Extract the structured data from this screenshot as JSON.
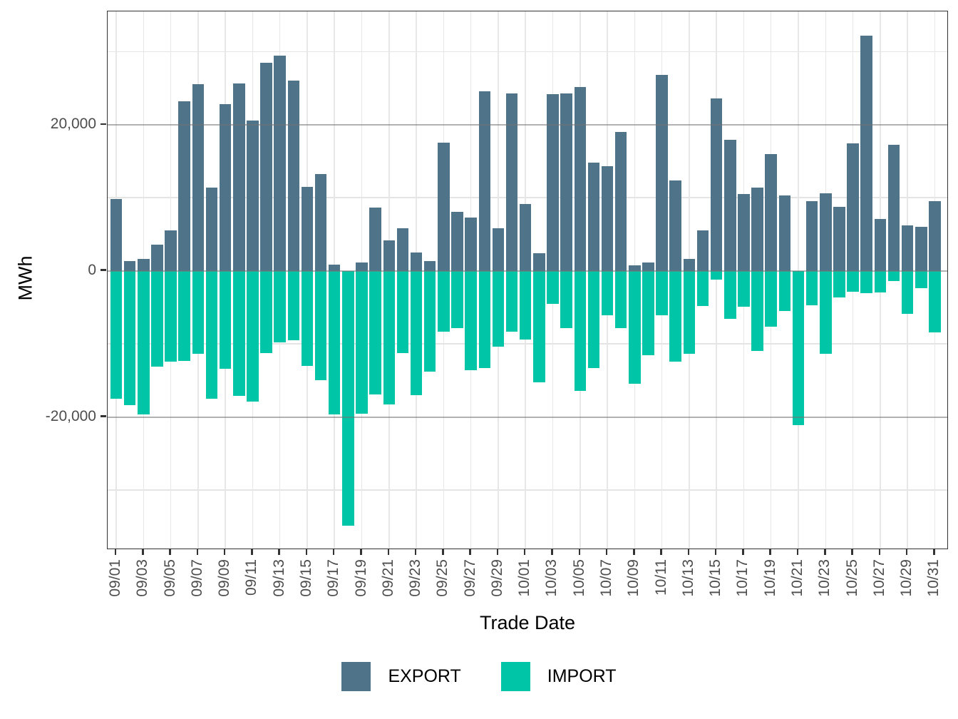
{
  "figure": {
    "y_axis_label": "MWh",
    "x_axis_label": "Trade Date",
    "y_ticks": [
      {
        "value": 20000,
        "label": "20,000"
      },
      {
        "value": 0,
        "label": "0"
      },
      {
        "value": -20000,
        "label": "-20,000"
      }
    ],
    "legend": [
      {
        "name": "EXPORT",
        "color": "#4f7389"
      },
      {
        "name": "IMPORT",
        "color": "#00c6a7"
      }
    ],
    "colors": {
      "export": "#4f7389",
      "import": "#00c6a7",
      "axis_text": "#4d4d4d",
      "title_text": "#000000",
      "grid_minor": "#e4e4e4",
      "grid_major": "#737373",
      "panel_border": "#333333"
    }
  },
  "chart_data": {
    "type": "bar",
    "orientation": "vertical",
    "title": "",
    "xlabel": "Trade Date",
    "ylabel": "MWh",
    "ylim": [
      -38200,
      35500
    ],
    "grid": true,
    "legend_position": "bottom",
    "y_major_gridlines": [
      -20000,
      0,
      20000
    ],
    "y_minor_gridlines": [
      -30000,
      -10000,
      10000,
      30000
    ],
    "categories": [
      "09/01",
      "09/02",
      "09/03",
      "09/04",
      "09/05",
      "09/06",
      "09/07",
      "09/08",
      "09/09",
      "09/10",
      "09/11",
      "09/12",
      "09/13",
      "09/14",
      "09/15",
      "09/16",
      "09/17",
      "09/18",
      "09/19",
      "09/20",
      "09/21",
      "09/22",
      "09/23",
      "09/24",
      "09/25",
      "09/26",
      "09/27",
      "09/28",
      "09/29",
      "09/30",
      "10/01",
      "10/02",
      "10/03",
      "10/04",
      "10/05",
      "10/06",
      "10/07",
      "10/08",
      "10/09",
      "10/10",
      "10/11",
      "10/12",
      "10/13",
      "10/14",
      "10/15",
      "10/16",
      "10/17",
      "10/18",
      "10/19",
      "10/20",
      "10/21",
      "10/22",
      "10/23",
      "10/24",
      "10/25",
      "10/26",
      "10/27",
      "10/28",
      "10/29",
      "10/30",
      "10/31"
    ],
    "x_tick_labels_shown": [
      "09/01",
      "09/03",
      "09/05",
      "09/07",
      "09/09",
      "09/11",
      "09/13",
      "09/15",
      "09/17",
      "09/19",
      "09/21",
      "09/23",
      "09/25",
      "09/27",
      "09/29",
      "10/01",
      "10/03",
      "10/05",
      "10/07",
      "10/09",
      "10/11",
      "10/13",
      "10/15",
      "10/17",
      "10/19",
      "10/21",
      "10/23",
      "10/25",
      "10/27",
      "10/29",
      "10/31"
    ],
    "series": [
      {
        "name": "EXPORT",
        "color": "#4f7389",
        "values": [
          9800,
          1300,
          1600,
          3600,
          5500,
          23200,
          25500,
          11400,
          22800,
          25600,
          20600,
          28500,
          29400,
          26000,
          11500,
          13200,
          800,
          0,
          1100,
          8700,
          4200,
          5800,
          2500,
          1300,
          17500,
          8100,
          7300,
          24600,
          5800,
          24300,
          9100,
          2400,
          24200,
          24300,
          25200,
          14800,
          14300,
          19000,
          700,
          1100,
          26800,
          12400,
          1600,
          5500,
          23600,
          17900,
          10500,
          11400,
          16000,
          10300,
          0,
          9500,
          10600,
          8800,
          17400,
          32200,
          7100,
          17200,
          6200,
          6000,
          9500
        ]
      },
      {
        "name": "IMPORT",
        "color": "#00c6a7",
        "values": [
          -17500,
          -18400,
          -19700,
          -13100,
          -12400,
          -12300,
          -11400,
          -17500,
          -13400,
          -17100,
          -17900,
          -11300,
          -9800,
          -9500,
          -13000,
          -15000,
          -19700,
          -34900,
          -19600,
          -16900,
          -18300,
          -11300,
          -17000,
          -13800,
          -8300,
          -7800,
          -13600,
          -13300,
          -10400,
          -8300,
          -9400,
          -15300,
          -4500,
          -7800,
          -16400,
          -13300,
          -6100,
          -7800,
          -15500,
          -11600,
          -6100,
          -12400,
          -11400,
          -4800,
          -1200,
          -6600,
          -4900,
          -11000,
          -7600,
          -5500,
          -21100,
          -4700,
          -11400,
          -3600,
          -2900,
          -3100,
          -3000,
          -1400,
          -5900,
          -2400,
          -8400
        ]
      }
    ]
  }
}
